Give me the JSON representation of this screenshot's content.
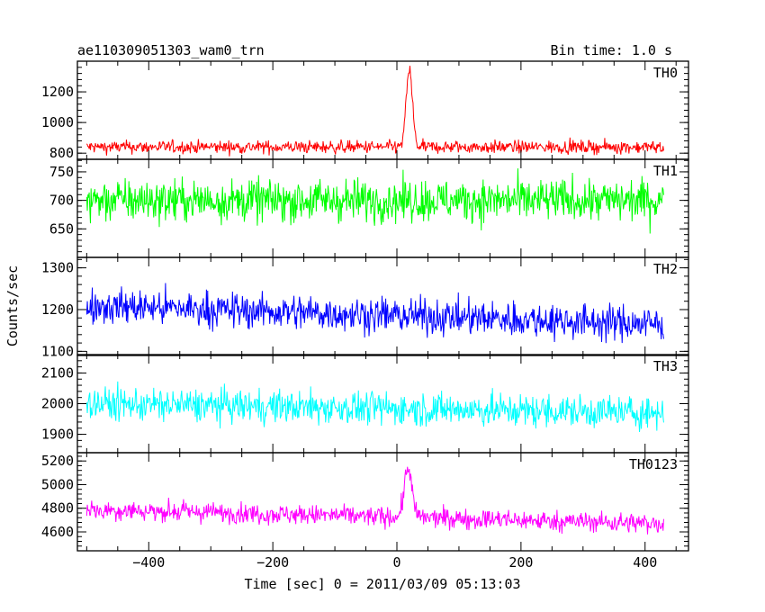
{
  "header": {
    "left": "ae110309051303_wam0_trn",
    "right": "Bin time: 1.0 s"
  },
  "chart_data": {
    "type": "line",
    "title": "ae110309051303_wam0_trn",
    "subtitle": "Bin time: 1.0 s",
    "xlabel": "Time [sec] 0 = 2011/03/09 05:13:03",
    "ylabel": "Counts/sec",
    "xlim": [
      -515,
      470
    ],
    "xticks": [
      -400,
      -200,
      0,
      200,
      400
    ],
    "x_range_data": [
      -500,
      430
    ],
    "grid": false,
    "panels": [
      {
        "name": "TH0",
        "color": "#ff0000",
        "ylim": [
          760,
          1400
        ],
        "yticks": [
          800,
          1000,
          1200
        ],
        "baseline": 840,
        "noise": 55,
        "trend": 0,
        "burst": {
          "t": 20,
          "peak": 1380,
          "width": 5
        }
      },
      {
        "name": "TH1",
        "color": "#00ff00",
        "ylim": [
          600,
          772
        ],
        "yticks": [
          650,
          700,
          750
        ],
        "baseline": 700,
        "noise": 48,
        "trend": 0,
        "burst": null
      },
      {
        "name": "TH2",
        "color": "#0000ff",
        "ylim": [
          1090,
          1325
        ],
        "yticks": [
          1100,
          1200,
          1300
        ],
        "baseline": 1210,
        "noise": 55,
        "trend": -45,
        "burst": null
      },
      {
        "name": "TH3",
        "color": "#00ffff",
        "ylim": [
          1840,
          2160
        ],
        "yticks": [
          1900,
          2000,
          2100
        ],
        "baseline": 2000,
        "noise": 70,
        "trend": -30,
        "burst": null
      },
      {
        "name": "TH0123",
        "color": "#ff00ff",
        "ylim": [
          4440,
          5270
        ],
        "yticks": [
          4600,
          4800,
          5000,
          5200
        ],
        "baseline": 4790,
        "noise": 110,
        "trend": -120,
        "burst": {
          "t": 18,
          "peak": 5250,
          "width": 6
        }
      }
    ]
  }
}
